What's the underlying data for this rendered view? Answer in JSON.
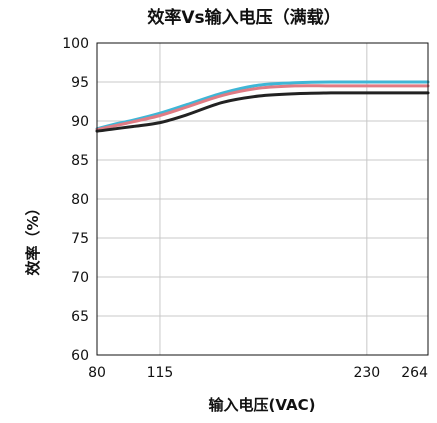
{
  "chart_data": {
    "type": "line",
    "title": "效率Vs输入电压（满载）",
    "xlabel": "输入电压(VAC)",
    "ylabel": "效率（%）",
    "x_ticks": [
      80,
      115,
      230,
      264
    ],
    "y_ticks": [
      60,
      65,
      70,
      75,
      80,
      85,
      90,
      95,
      100
    ],
    "xlim": [
      80,
      264
    ],
    "ylim": [
      60,
      100
    ],
    "grid": true,
    "series": [
      {
        "color": "#3fb6d6",
        "x": [
          80,
          90,
          100,
          115,
          130,
          150,
          170,
          190,
          210,
          230,
          240,
          250,
          264
        ],
        "y": [
          89.0,
          89.6,
          90.1,
          91.0,
          92.1,
          93.6,
          94.6,
          94.9,
          95.0,
          95.0,
          95.0,
          95.0,
          95.0
        ]
      },
      {
        "color": "#e07b84",
        "x": [
          80,
          90,
          100,
          115,
          130,
          150,
          170,
          190,
          210,
          230,
          240,
          250,
          264
        ],
        "y": [
          88.9,
          89.4,
          89.9,
          90.7,
          91.8,
          93.3,
          94.2,
          94.5,
          94.5,
          94.5,
          94.5,
          94.5,
          94.5
        ]
      },
      {
        "color": "#222222",
        "x": [
          80,
          90,
          100,
          115,
          130,
          150,
          170,
          190,
          210,
          230,
          240,
          250,
          264
        ],
        "y": [
          88.7,
          89.0,
          89.3,
          89.8,
          90.8,
          92.4,
          93.2,
          93.5,
          93.6,
          93.6,
          93.6,
          93.6,
          93.6
        ]
      }
    ]
  }
}
